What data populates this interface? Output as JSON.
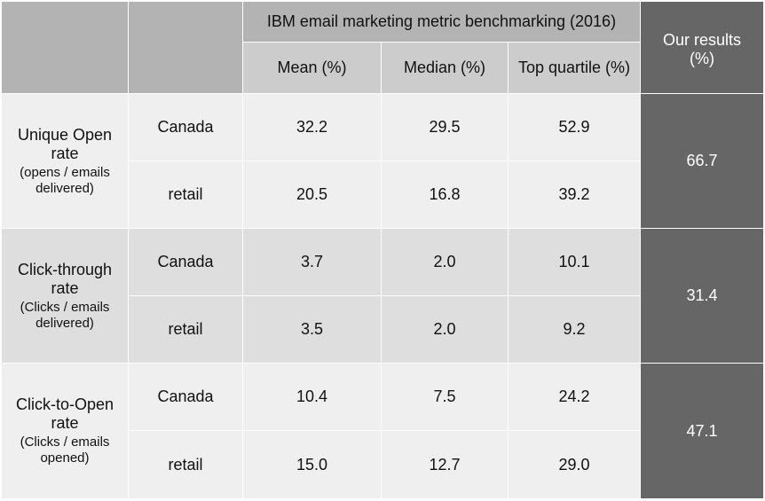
{
  "header": {
    "group_title": "IBM email marketing metric benchmarking (2016)",
    "columns": [
      "Mean (%)",
      "Median (%)",
      "Top quartile (%)"
    ],
    "our_results": "Our results (%)"
  },
  "rows": [
    {
      "metric": "Unique Open rate",
      "subtitle": "(opens / emails delivered)",
      "segments": [
        {
          "label": "Canada",
          "mean": "32.2",
          "median": "29.5",
          "top": "52.9"
        },
        {
          "label": "retail",
          "mean": "20.5",
          "median": "16.8",
          "top": "39.2"
        }
      ],
      "ours": "66.7"
    },
    {
      "metric": "Click-through rate",
      "subtitle": "(Clicks / emails delivered)",
      "segments": [
        {
          "label": "Canada",
          "mean": "3.7",
          "median": "2.0",
          "top": "10.1"
        },
        {
          "label": "retail",
          "mean": "3.5",
          "median": "2.0",
          "top": "9.2"
        }
      ],
      "ours": "31.4"
    },
    {
      "metric": "Click-to-Open rate",
      "subtitle": "(Clicks / emails opened)",
      "segments": [
        {
          "label": "Canada",
          "mean": "10.4",
          "median": "7.5",
          "top": "24.2"
        },
        {
          "label": "retail",
          "mean": "15.0",
          "median": "12.7",
          "top": "29.0"
        }
      ],
      "ours": "47.1"
    }
  ]
}
